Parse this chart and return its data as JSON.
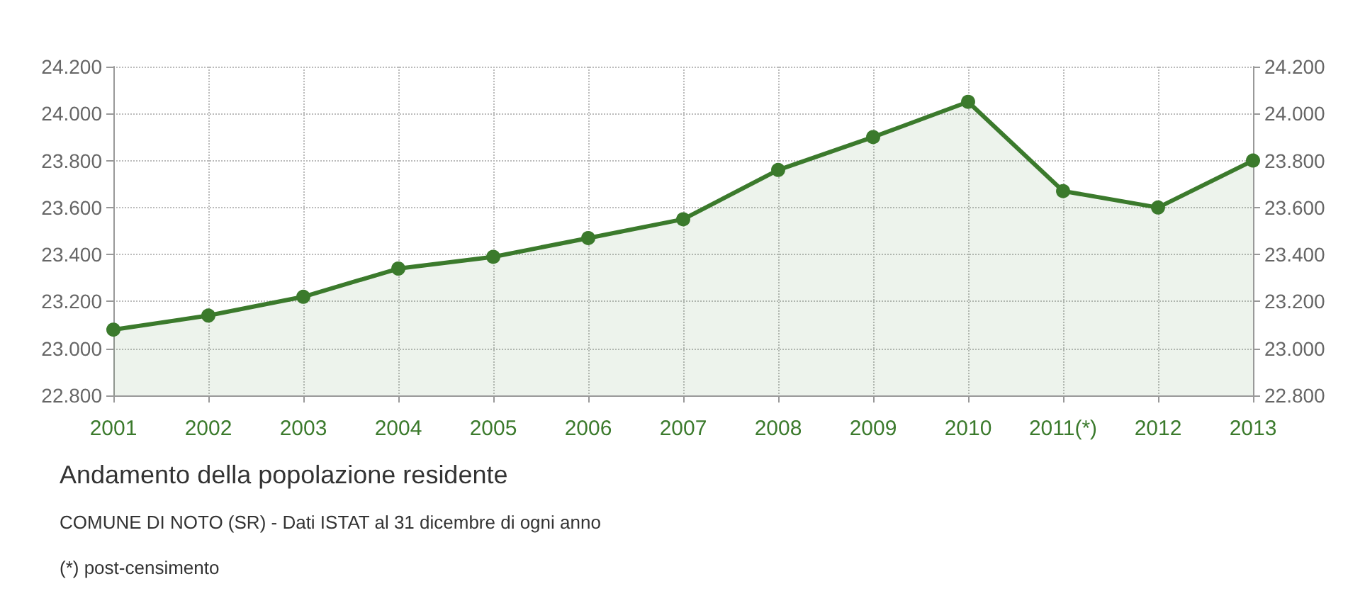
{
  "chart_data": {
    "type": "area",
    "title": "Andamento della popolazione residente",
    "subtitle": "COMUNE DI NOTO (SR) - Dati ISTAT al 31 dicembre di ogni anno",
    "annotations": [
      "(*) post-censimento"
    ],
    "categories": [
      "2001",
      "2002",
      "2003",
      "2004",
      "2005",
      "2006",
      "2007",
      "2008",
      "2009",
      "2010",
      "2011(*)",
      "2012",
      "2013"
    ],
    "series": [
      {
        "color": "#3b7a2c",
        "values": [
          23080,
          23140,
          23220,
          23340,
          23390,
          23470,
          23550,
          23760,
          23900,
          24050,
          23670,
          23600,
          23800
        ]
      }
    ],
    "ylim": [
      22800,
      24200
    ],
    "yticks": [
      {
        "value": 22800,
        "label": "22.800"
      },
      {
        "value": 23000,
        "label": "23.000"
      },
      {
        "value": 23200,
        "label": "23.200"
      },
      {
        "value": 23400,
        "label": "23.400"
      },
      {
        "value": 23600,
        "label": "23.600"
      },
      {
        "value": 23800,
        "label": "23.800"
      },
      {
        "value": 24000,
        "label": "24.000"
      },
      {
        "value": 24200,
        "label": "24.200"
      }
    ],
    "y2lim": [
      22800,
      24200
    ],
    "y2ticks": [
      {
        "value": 22800,
        "label": "22.800"
      },
      {
        "value": 23000,
        "label": "23.000"
      },
      {
        "value": 23200,
        "label": "23.200"
      },
      {
        "value": 23400,
        "label": "23.400"
      },
      {
        "value": 23600,
        "label": "23.600"
      },
      {
        "value": 23800,
        "label": "23.800"
      },
      {
        "value": 24000,
        "label": "24.000"
      },
      {
        "value": 24200,
        "label": "24.200"
      }
    ],
    "grid": true,
    "marker": "circle",
    "line_style": "solid"
  }
}
